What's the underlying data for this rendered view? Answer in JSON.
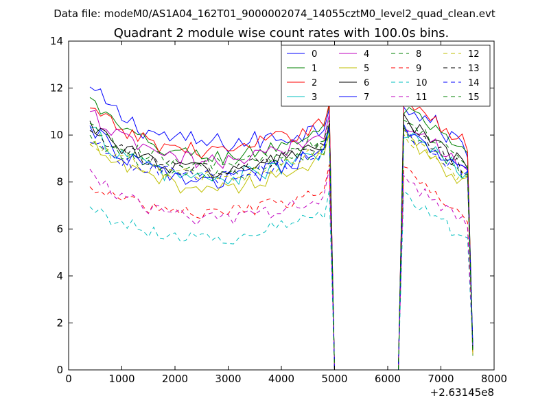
{
  "header": {
    "suptitle": "Data file: modeM0/AS1A04_162T01_9000002074_14055cztM0_level2_quad_clean.evt"
  },
  "chart_data": {
    "type": "line",
    "title": "Quadrant 2 module wise count rates with 100.0s bins.",
    "xlabel": "",
    "ylabel": "",
    "x_offset_label": "+2.63145e8",
    "xlim": [
      0,
      8000
    ],
    "ylim": [
      0,
      14
    ],
    "xticks": [
      0,
      1000,
      2000,
      3000,
      4000,
      5000,
      6000,
      7000,
      8000
    ],
    "yticks": [
      0,
      2,
      4,
      6,
      8,
      10,
      12,
      14
    ],
    "grid": false,
    "legend_position": "top-right",
    "legend_columns": 4,
    "series": [
      {
        "name": "0",
        "color": "#0000ff",
        "dash": "solid",
        "base": 10.3,
        "dip": 0.9,
        "endRise": 0.0,
        "noise": 0.45,
        "seg2": 10.2,
        "startVal": 12.05
      },
      {
        "name": "1",
        "color": "#008000",
        "dash": "solid",
        "base": 9.8,
        "dip": 1.0,
        "endRise": 0.4,
        "noise": 0.35,
        "seg2": 9.9,
        "startVal": 11.6
      },
      {
        "name": "2",
        "color": "#ff0000",
        "dash": "solid",
        "base": 10.0,
        "dip": 0.9,
        "endRise": 0.5,
        "noise": 0.35,
        "seg2": 10.3,
        "startVal": 11.15
      },
      {
        "name": "3",
        "color": "#00bfbf",
        "dash": "solid",
        "base": 8.9,
        "dip": 1.0,
        "endRise": 0.3,
        "noise": 0.4,
        "seg2": 9.0,
        "startVal": 10.3
      },
      {
        "name": "4",
        "color": "#bf00bf",
        "dash": "solid",
        "base": 9.6,
        "dip": 1.0,
        "endRise": 0.4,
        "noise": 0.35,
        "seg2": 9.4,
        "startVal": 11.0
      },
      {
        "name": "5",
        "color": "#bfbf00",
        "dash": "solid",
        "base": 8.6,
        "dip": 1.1,
        "endRise": 0.4,
        "noise": 0.35,
        "seg2": 8.7,
        "startVal": 9.6
      },
      {
        "name": "6",
        "color": "#000000",
        "dash": "solid",
        "base": 9.3,
        "dip": 1.1,
        "endRise": 0.3,
        "noise": 0.35,
        "seg2": 9.4,
        "startVal": 10.6
      },
      {
        "name": "7",
        "color": "#0000ff",
        "dash": "solid",
        "base": 8.8,
        "dip": 1.0,
        "endRise": 0.5,
        "noise": 0.35,
        "seg2": 9.0,
        "startVal": 10.4
      },
      {
        "name": "8",
        "color": "#008000",
        "dash": "dashed",
        "base": 9.0,
        "dip": 1.0,
        "endRise": 0.4,
        "noise": 0.3,
        "seg2": 9.0,
        "startVal": 10.0
      },
      {
        "name": "9",
        "color": "#ff0000",
        "dash": "dashed",
        "base": 7.3,
        "dip": 0.8,
        "endRise": 0.3,
        "noise": 0.3,
        "seg2": 7.3,
        "startVal": 7.8
      },
      {
        "name": "10",
        "color": "#00bfbf",
        "dash": "dashed",
        "base": 6.3,
        "dip": 0.9,
        "endRise": 0.4,
        "noise": 0.3,
        "seg2": 6.3,
        "startVal": 6.95
      },
      {
        "name": "11",
        "color": "#bf00bf",
        "dash": "dashed",
        "base": 7.0,
        "dip": 0.8,
        "endRise": 0.4,
        "noise": 0.3,
        "seg2": 7.0,
        "startVal": 8.55
      },
      {
        "name": "12",
        "color": "#bfbf00",
        "dash": "dashed",
        "base": 9.0,
        "dip": 1.0,
        "endRise": 0.4,
        "noise": 0.3,
        "seg2": 8.8,
        "startVal": 9.6
      },
      {
        "name": "13",
        "color": "#000000",
        "dash": "dashed",
        "base": 9.2,
        "dip": 0.9,
        "endRise": 0.4,
        "noise": 0.3,
        "seg2": 9.2,
        "startVal": 10.2
      },
      {
        "name": "14",
        "color": "#0000ff",
        "dash": "dashed",
        "base": 8.9,
        "dip": 0.9,
        "endRise": 0.4,
        "noise": 0.3,
        "seg2": 9.0,
        "startVal": 9.7
      },
      {
        "name": "15",
        "color": "#008000",
        "dash": "dashed",
        "base": 9.4,
        "dip": 0.9,
        "endRise": 0.4,
        "noise": 0.3,
        "seg2": 9.5,
        "startVal": 10.5
      }
    ]
  }
}
